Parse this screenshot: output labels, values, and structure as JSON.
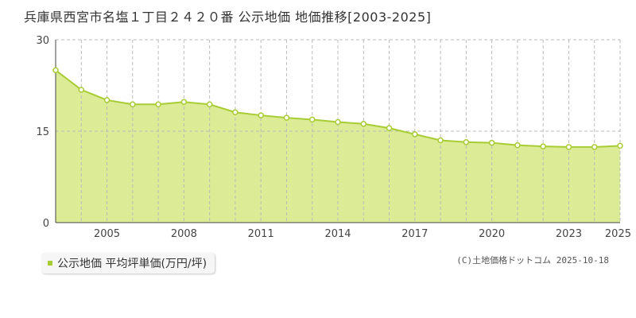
{
  "title": "兵庫県西宮市名塩１丁目２４２０番 公示地価 地価推移[2003-2025]",
  "legend_label": "公示地価 平均坪単価(万円/坪)",
  "source": "(C)土地価格ドットコム 2025-10-18",
  "colors": {
    "fill": "#dbeb96",
    "line": "#a8cc34",
    "grid": "#bbbbbb",
    "point_fill": "#ffffff"
  },
  "chart_data": {
    "type": "area",
    "title": "兵庫県西宮市名塩１丁目２４２０番 公示地価 地価推移[2003-2025]",
    "xlabel": "",
    "ylabel": "",
    "xlim": [
      2003,
      2025
    ],
    "ylim": [
      0,
      30
    ],
    "y_ticks": [
      0,
      15,
      30
    ],
    "x_tick_labels": [
      2005,
      2008,
      2011,
      2014,
      2017,
      2020,
      2023,
      2025
    ],
    "grid": true,
    "legend": "bottom-left",
    "series": [
      {
        "name": "公示地価 平均坪単価(万円/坪)",
        "x": [
          2003,
          2004,
          2005,
          2006,
          2007,
          2008,
          2009,
          2010,
          2011,
          2012,
          2013,
          2014,
          2015,
          2016,
          2017,
          2018,
          2019,
          2020,
          2021,
          2022,
          2023,
          2024,
          2025
        ],
        "values": [
          25.0,
          21.8,
          20.1,
          19.4,
          19.4,
          19.8,
          19.4,
          18.1,
          17.6,
          17.2,
          16.9,
          16.5,
          16.2,
          15.5,
          14.5,
          13.5,
          13.2,
          13.1,
          12.7,
          12.5,
          12.4,
          12.4,
          12.6
        ]
      }
    ]
  }
}
